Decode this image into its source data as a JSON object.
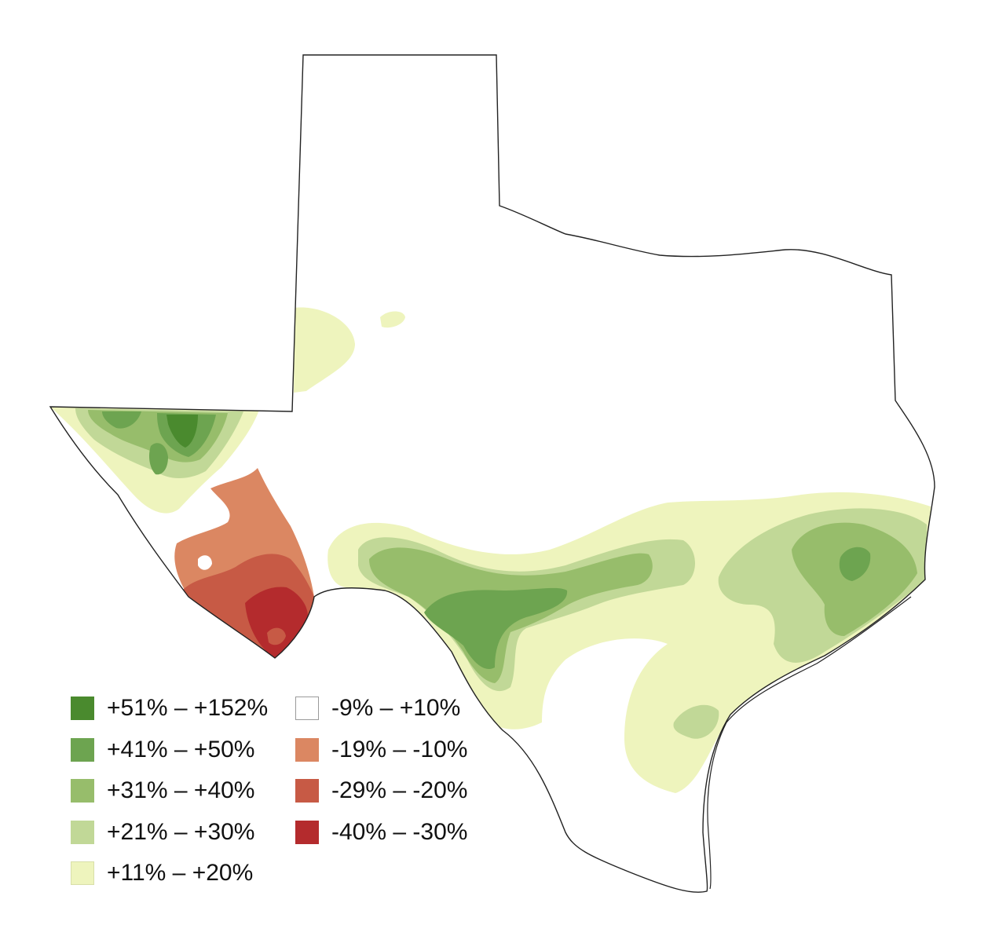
{
  "legend": {
    "items": [
      {
        "label": "+51% – +152%",
        "color": "#4a8a2e"
      },
      {
        "label": "+41% – +50%",
        "color": "#6da450"
      },
      {
        "label": "+31% – +40%",
        "color": "#97bd6b"
      },
      {
        "label": "+21% – +30%",
        "color": "#c1d897"
      },
      {
        "label": "+11% – +20%",
        "color": "#eef4bd"
      },
      {
        "label": "-9% – +10%",
        "color": "#ffffff"
      },
      {
        "label": "-19% – -10%",
        "color": "#db8762"
      },
      {
        "label": "-29% – -20%",
        "color": "#c75a45"
      },
      {
        "label": "-40% – -30%",
        "color": "#b42b2d"
      }
    ]
  }
}
